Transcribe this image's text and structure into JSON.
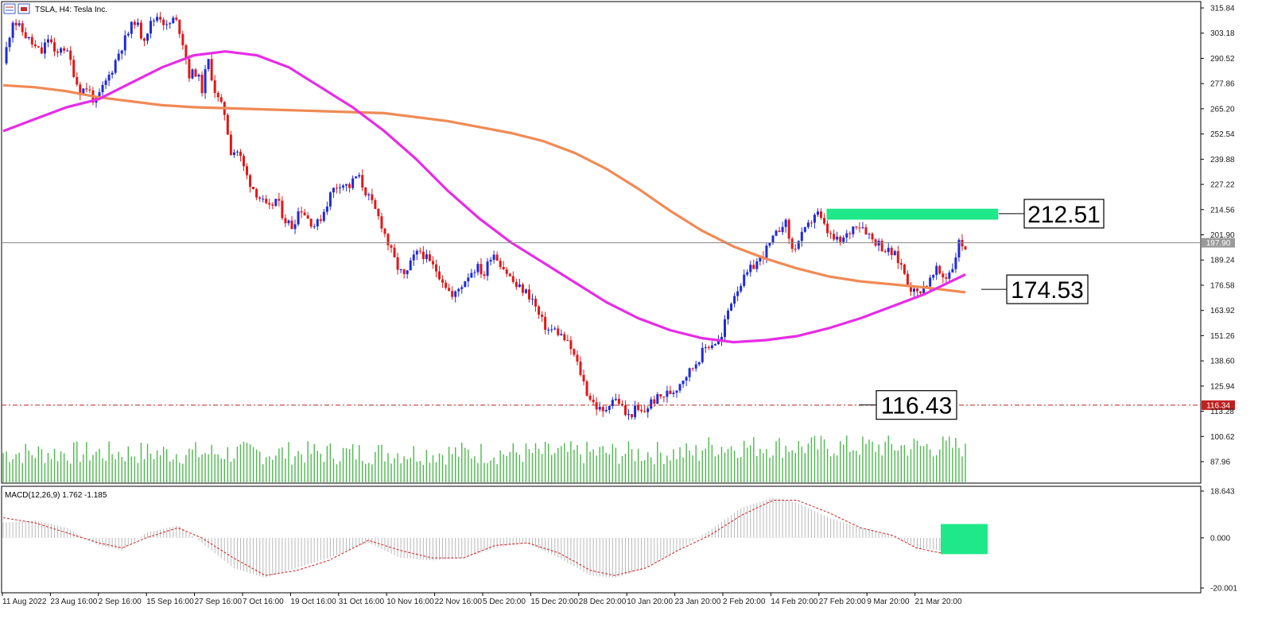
{
  "header": {
    "title": "TSLA, H4:  Tesla Inc.",
    "icon_left": "chart-grid-icon",
    "icon_right": "calendar-icon"
  },
  "colors": {
    "bull": "#1f2bd4",
    "bear": "#e01818",
    "ma_fast": "#e62ce6",
    "ma_slow": "#f08a55",
    "volume": "#4cb84c",
    "zone": "#1ee88a",
    "support": "#c02020",
    "macd_hist": "#b8b8b8",
    "macd_signal": "#d02020"
  },
  "chart_data": {
    "type": "candlestick",
    "symbol": "TSLA",
    "timeframe": "H4",
    "ylim": [
      82,
      318
    ],
    "y_ticks": [
      "315.84",
      "303.18",
      "290.52",
      "277.86",
      "265.20",
      "252.54",
      "239.88",
      "227.22",
      "214.56",
      "201.90",
      "189.24",
      "176.58",
      "163.92",
      "151.26",
      "138.60",
      "125.94",
      "113.28",
      "100.62",
      "87.96"
    ],
    "x_ticks": [
      "11 Aug 2022",
      "23 Aug 16:00",
      "2 Sep 16:00",
      "15 Sep 16:00",
      "27 Sep 16:00",
      "7 Oct 16:00",
      "19 Oct 16:00",
      "31 Oct 16:00",
      "10 Nov 16:00",
      "22 Nov 16:00",
      "5 Dec 20:00",
      "15 Dec 20:00",
      "28 Dec 20:00",
      "10 Jan 20:00",
      "23 Jan 20:00",
      "2 Feb 20:00",
      "14 Feb 20:00",
      "27 Feb 20:00",
      "9 Mar 20:00",
      "21 Mar 20:00"
    ],
    "current_price_label": "197.90",
    "current_price": 197.9,
    "support_label": "116.34",
    "support_price": 116.34,
    "resistance_zone": {
      "low": 209.5,
      "high": 215.0,
      "start_fraction": 0.688,
      "end_fraction": 1.03
    },
    "annotations": [
      {
        "text": "212.51",
        "price": 212.51
      },
      {
        "text": "174.53",
        "price": 174.53
      },
      {
        "text": "116.43",
        "price": 116.43
      }
    ],
    "close_path": [
      [
        0,
        288
      ],
      [
        12,
        310
      ],
      [
        26,
        303
      ],
      [
        40,
        296
      ],
      [
        48,
        293
      ],
      [
        58,
        302
      ],
      [
        66,
        290
      ],
      [
        74,
        298
      ],
      [
        84,
        290
      ],
      [
        96,
        274
      ],
      [
        106,
        276
      ],
      [
        116,
        268
      ],
      [
        126,
        276
      ],
      [
        136,
        284
      ],
      [
        146,
        294
      ],
      [
        156,
        302
      ],
      [
        166,
        310
      ],
      [
        176,
        300
      ],
      [
        186,
        308
      ],
      [
        196,
        313
      ],
      [
        206,
        306
      ],
      [
        214,
        310
      ],
      [
        220,
        308
      ],
      [
        228,
        296
      ],
      [
        234,
        282
      ],
      [
        244,
        284
      ],
      [
        250,
        274
      ],
      [
        258,
        290
      ],
      [
        268,
        272
      ],
      [
        280,
        262
      ],
      [
        286,
        244
      ],
      [
        296,
        244
      ],
      [
        306,
        232
      ],
      [
        314,
        226
      ],
      [
        324,
        220
      ],
      [
        334,
        214
      ],
      [
        344,
        220
      ],
      [
        354,
        210
      ],
      [
        364,
        206
      ],
      [
        374,
        216
      ],
      [
        384,
        210
      ],
      [
        394,
        206
      ],
      [
        404,
        214
      ],
      [
        414,
        224
      ],
      [
        424,
        228
      ],
      [
        436,
        226
      ],
      [
        446,
        232
      ],
      [
        456,
        224
      ],
      [
        466,
        216
      ],
      [
        476,
        208
      ],
      [
        486,
        196
      ],
      [
        496,
        186
      ],
      [
        506,
        180
      ],
      [
        516,
        190
      ],
      [
        526,
        194
      ],
      [
        536,
        188
      ],
      [
        546,
        184
      ],
      [
        556,
        178
      ],
      [
        566,
        170
      ],
      [
        576,
        176
      ],
      [
        586,
        182
      ],
      [
        596,
        186
      ],
      [
        606,
        182
      ],
      [
        616,
        194
      ],
      [
        626,
        188
      ],
      [
        636,
        182
      ],
      [
        646,
        176
      ],
      [
        656,
        174
      ],
      [
        666,
        170
      ],
      [
        676,
        160
      ],
      [
        686,
        154
      ],
      [
        696,
        154
      ],
      [
        706,
        150
      ],
      [
        716,
        144
      ],
      [
        726,
        134
      ],
      [
        736,
        122
      ],
      [
        746,
        116
      ],
      [
        756,
        112
      ],
      [
        766,
        120
      ],
      [
        776,
        118
      ],
      [
        786,
        110
      ],
      [
        796,
        114
      ],
      [
        806,
        112
      ],
      [
        816,
        118
      ],
      [
        826,
        120
      ],
      [
        836,
        122
      ],
      [
        846,
        124
      ],
      [
        856,
        130
      ],
      [
        866,
        134
      ],
      [
        876,
        140
      ],
      [
        886,
        146
      ],
      [
        896,
        148
      ],
      [
        904,
        148
      ],
      [
        910,
        160
      ],
      [
        918,
        170
      ],
      [
        926,
        176
      ],
      [
        934,
        180
      ],
      [
        944,
        186
      ],
      [
        954,
        190
      ],
      [
        964,
        196
      ],
      [
        974,
        202
      ],
      [
        984,
        210
      ],
      [
        994,
        194
      ],
      [
        1004,
        200
      ],
      [
        1014,
        206
      ],
      [
        1024,
        214
      ],
      [
        1034,
        206
      ],
      [
        1044,
        200
      ],
      [
        1054,
        198
      ],
      [
        1064,
        202
      ],
      [
        1074,
        208
      ],
      [
        1084,
        206
      ],
      [
        1094,
        200
      ],
      [
        1102,
        198
      ],
      [
        1112,
        194
      ],
      [
        1122,
        192
      ],
      [
        1132,
        186
      ],
      [
        1142,
        176
      ],
      [
        1150,
        172
      ],
      [
        1158,
        176
      ],
      [
        1166,
        178
      ],
      [
        1176,
        184
      ],
      [
        1186,
        180
      ],
      [
        1196,
        186
      ],
      [
        1204,
        198
      ],
      [
        1212,
        196
      ]
    ],
    "ma_fast": [
      [
        0,
        254
      ],
      [
        40,
        260
      ],
      [
        80,
        266
      ],
      [
        120,
        270
      ],
      [
        160,
        278
      ],
      [
        200,
        286
      ],
      [
        240,
        292
      ],
      [
        280,
        294
      ],
      [
        320,
        292
      ],
      [
        360,
        286
      ],
      [
        400,
        276
      ],
      [
        440,
        266
      ],
      [
        480,
        254
      ],
      [
        520,
        240
      ],
      [
        560,
        224
      ],
      [
        600,
        210
      ],
      [
        640,
        198
      ],
      [
        680,
        188
      ],
      [
        720,
        178
      ],
      [
        760,
        168
      ],
      [
        800,
        160
      ],
      [
        840,
        154
      ],
      [
        880,
        150
      ],
      [
        920,
        148
      ],
      [
        960,
        149
      ],
      [
        1000,
        151
      ],
      [
        1040,
        155
      ],
      [
        1080,
        160
      ],
      [
        1120,
        166
      ],
      [
        1160,
        172
      ],
      [
        1212,
        182
      ]
    ],
    "ma_slow": [
      [
        0,
        277
      ],
      [
        40,
        276
      ],
      [
        80,
        274
      ],
      [
        120,
        271
      ],
      [
        160,
        269
      ],
      [
        200,
        267
      ],
      [
        240,
        266
      ],
      [
        280,
        265.5
      ],
      [
        320,
        265
      ],
      [
        360,
        264.5
      ],
      [
        400,
        264
      ],
      [
        440,
        263.5
      ],
      [
        480,
        263
      ],
      [
        520,
        261
      ],
      [
        560,
        259
      ],
      [
        600,
        256
      ],
      [
        640,
        253
      ],
      [
        680,
        249
      ],
      [
        720,
        243
      ],
      [
        760,
        235
      ],
      [
        800,
        225
      ],
      [
        840,
        214
      ],
      [
        880,
        204
      ],
      [
        920,
        196
      ],
      [
        960,
        190
      ],
      [
        1000,
        185
      ],
      [
        1040,
        181
      ],
      [
        1080,
        178.5
      ],
      [
        1120,
        177
      ],
      [
        1160,
        175.5
      ],
      [
        1212,
        173
      ]
    ],
    "macd": {
      "label": "MACD(12,26,9) 1.762 -1.185",
      "ylim": [
        -20.0,
        18.643
      ],
      "y_ticks": [
        "18.643",
        "0.000",
        "-20.001"
      ],
      "hist": [
        [
          0,
          6
        ],
        [
          40,
          7
        ],
        [
          80,
          4
        ],
        [
          120,
          -3
        ],
        [
          150,
          -5
        ],
        [
          180,
          2
        ],
        [
          220,
          5
        ],
        [
          250,
          -2
        ],
        [
          290,
          -12
        ],
        [
          330,
          -16
        ],
        [
          370,
          -12
        ],
        [
          410,
          -8
        ],
        [
          460,
          -2
        ],
        [
          500,
          -8
        ],
        [
          540,
          -9
        ],
        [
          580,
          -8
        ],
        [
          620,
          -4
        ],
        [
          660,
          -2
        ],
        [
          700,
          -8
        ],
        [
          740,
          -15
        ],
        [
          770,
          -16
        ],
        [
          810,
          -12
        ],
        [
          850,
          -5
        ],
        [
          890,
          3
        ],
        [
          930,
          12
        ],
        [
          970,
          16
        ],
        [
          1000,
          14
        ],
        [
          1040,
          8
        ],
        [
          1080,
          4
        ],
        [
          1120,
          1
        ],
        [
          1150,
          -4
        ],
        [
          1180,
          -5
        ],
        [
          1212,
          2
        ]
      ],
      "signal": [
        [
          0,
          8
        ],
        [
          40,
          6
        ],
        [
          80,
          2
        ],
        [
          120,
          -2
        ],
        [
          150,
          -4
        ],
        [
          180,
          0
        ],
        [
          220,
          4
        ],
        [
          250,
          0
        ],
        [
          290,
          -8
        ],
        [
          330,
          -15
        ],
        [
          370,
          -13
        ],
        [
          410,
          -9
        ],
        [
          460,
          -1
        ],
        [
          500,
          -5
        ],
        [
          540,
          -8
        ],
        [
          580,
          -8
        ],
        [
          620,
          -3
        ],
        [
          660,
          -2
        ],
        [
          700,
          -6
        ],
        [
          740,
          -13
        ],
        [
          770,
          -15
        ],
        [
          810,
          -12
        ],
        [
          850,
          -5
        ],
        [
          890,
          1
        ],
        [
          930,
          9
        ],
        [
          970,
          15
        ],
        [
          1000,
          15
        ],
        [
          1040,
          10
        ],
        [
          1080,
          4
        ],
        [
          1120,
          1
        ],
        [
          1150,
          -4
        ],
        [
          1180,
          -6
        ],
        [
          1212,
          0
        ]
      ],
      "zone": {
        "low": -6.5,
        "high": 5.5
      }
    }
  }
}
